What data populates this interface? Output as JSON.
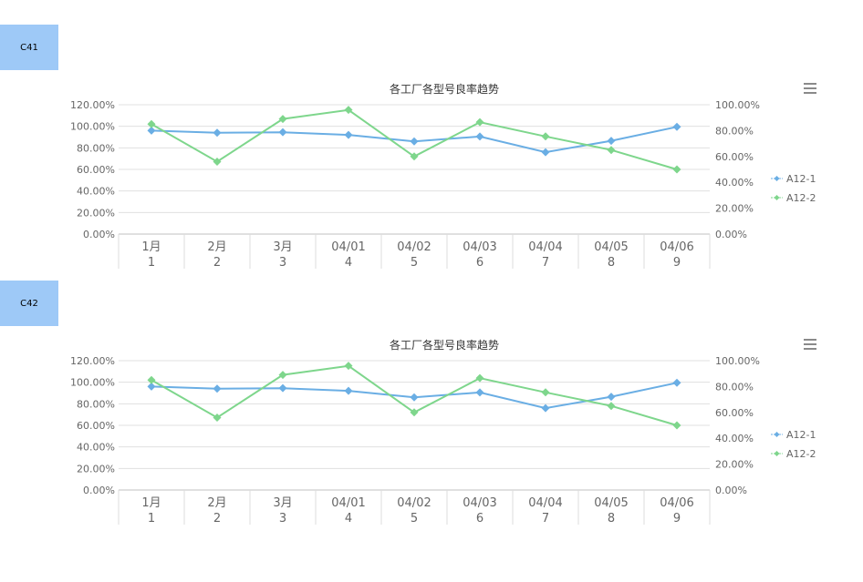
{
  "sections": [
    {
      "tag": "C41"
    },
    {
      "tag": "C42"
    }
  ],
  "chart_data": [
    {
      "type": "line",
      "title": "各工厂各型号良率趋势",
      "categories": [
        [
          "1月",
          "1"
        ],
        [
          "2月",
          "2"
        ],
        [
          "3月",
          "3"
        ],
        [
          "04/01",
          "4"
        ],
        [
          "04/02",
          "5"
        ],
        [
          "04/03",
          "6"
        ],
        [
          "04/04",
          "7"
        ],
        [
          "04/05",
          "8"
        ],
        [
          "04/06",
          "9"
        ]
      ],
      "y_left": {
        "min": 0,
        "max": 1.2,
        "ticks": [
          "0.00%",
          "20.00%",
          "40.00%",
          "60.00%",
          "80.00%",
          "100.00%",
          "120.00%"
        ]
      },
      "y_right": {
        "min": 0,
        "max": 1.0,
        "ticks": [
          "0.00%",
          "20.00%",
          "40.00%",
          "60.00%",
          "80.00%",
          "100.00%"
        ]
      },
      "series": [
        {
          "name": "A12-1",
          "color": "#6aaee4",
          "axis": "left",
          "values": [
            0.96,
            0.94,
            0.945,
            0.92,
            0.86,
            0.905,
            0.76,
            0.865,
            0.995
          ]
        },
        {
          "name": "A12-2",
          "color": "#7ed68c",
          "axis": "right",
          "values": [
            0.85,
            0.56,
            0.89,
            0.96,
            0.6,
            0.865,
            0.755,
            0.65,
            0.5
          ]
        }
      ],
      "grid": true,
      "legend_position": "right",
      "menu_icon": "hamburger-menu-icon"
    },
    {
      "type": "line",
      "title": "各工厂各型号良率趋势",
      "categories": [
        [
          "1月",
          "1"
        ],
        [
          "2月",
          "2"
        ],
        [
          "3月",
          "3"
        ],
        [
          "04/01",
          "4"
        ],
        [
          "04/02",
          "5"
        ],
        [
          "04/03",
          "6"
        ],
        [
          "04/04",
          "7"
        ],
        [
          "04/05",
          "8"
        ],
        [
          "04/06",
          "9"
        ]
      ],
      "y_left": {
        "min": 0,
        "max": 1.2,
        "ticks": [
          "0.00%",
          "20.00%",
          "40.00%",
          "60.00%",
          "80.00%",
          "100.00%",
          "120.00%"
        ]
      },
      "y_right": {
        "min": 0,
        "max": 1.0,
        "ticks": [
          "0.00%",
          "20.00%",
          "40.00%",
          "60.00%",
          "80.00%",
          "100.00%"
        ]
      },
      "series": [
        {
          "name": "A12-1",
          "color": "#6aaee4",
          "axis": "left",
          "values": [
            0.96,
            0.94,
            0.945,
            0.92,
            0.86,
            0.905,
            0.76,
            0.865,
            0.995
          ]
        },
        {
          "name": "A12-2",
          "color": "#7ed68c",
          "axis": "right",
          "values": [
            0.85,
            0.56,
            0.89,
            0.96,
            0.6,
            0.865,
            0.755,
            0.65,
            0.5
          ]
        }
      ],
      "grid": true,
      "legend_position": "right",
      "menu_icon": "hamburger-menu-icon"
    }
  ]
}
